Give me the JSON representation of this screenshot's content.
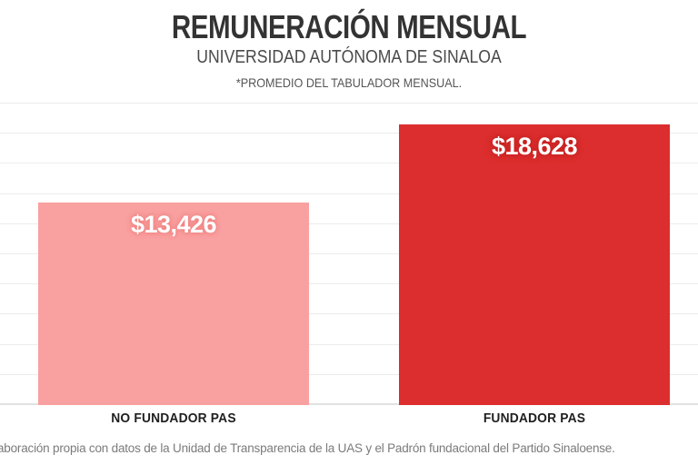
{
  "header": {
    "title": "REMUNERACIÓN MENSUAL",
    "subtitle": "UNIVERSIDAD AUTÓNOMA DE SINALOA",
    "note": "*PROMEDIO DEL TABULADOR MENSUAL."
  },
  "chart_data": {
    "type": "bar",
    "title": "REMUNERACIÓN MENSUAL",
    "subtitle": "UNIVERSIDAD AUTÓNOMA DE SINALOA",
    "footnote": "*PROMEDIO DEL TABULADOR MENSUAL.",
    "categories": [
      "NO FUNDADOR PAS",
      "FUNDADOR PAS"
    ],
    "values": [
      13426,
      18628
    ],
    "value_labels": [
      "$13,426",
      "$18,628"
    ],
    "bar_colors": [
      "#F9A1A1",
      "#DC2E2E"
    ],
    "label_glow_colors": [
      "#F07E7E",
      "#C21F1F"
    ],
    "ylim": [
      0,
      20000
    ],
    "gridline_step": 2000,
    "grid": true,
    "legend": false,
    "y_tick_labels_visible": false,
    "xlabel": "",
    "ylabel": ""
  },
  "source": {
    "text": "aboración propia con datos de la Unidad de Transparencia de la UAS y el Padrón fundacional del Partido Sinaloense."
  },
  "colors": {
    "background": "#FFFFFF",
    "gridline": "#ECECEC",
    "axis_line": "#E2E2E2",
    "title": "#333333",
    "subtitle": "#4A4A4A",
    "footnote": "#555555",
    "category_label": "#1F1F1F",
    "value_label": "#FFFFFF",
    "source_text": "#7B7B7B"
  }
}
